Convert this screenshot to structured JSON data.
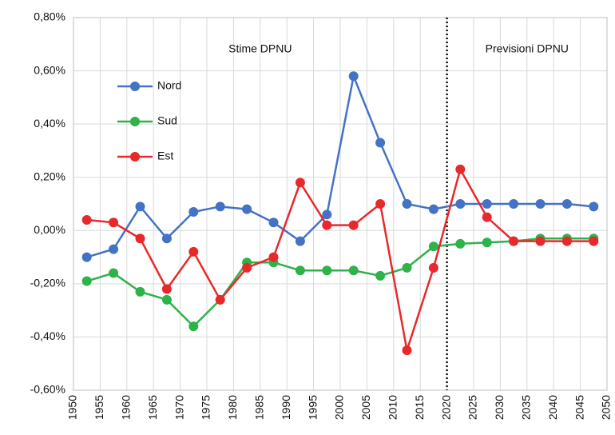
{
  "chart_data": {
    "type": "line",
    "x": [
      1952.5,
      1957.5,
      1962.5,
      1967.5,
      1972.5,
      1977.5,
      1982.5,
      1987.5,
      1992.5,
      1997.5,
      2002.5,
      2007.5,
      2012.5,
      2017.5,
      2022.5,
      2027.5,
      2032.5,
      2037.5,
      2042.5,
      2047.5
    ],
    "series": [
      {
        "name": "Nord",
        "color": "#4472c4",
        "values": [
          -0.1,
          -0.07,
          0.09,
          -0.03,
          0.07,
          0.09,
          0.08,
          0.03,
          -0.04,
          0.06,
          0.58,
          0.33,
          0.1,
          0.08,
          0.1,
          0.1,
          0.1,
          0.1,
          0.1,
          0.09
        ]
      },
      {
        "name": "Sud",
        "color": "#2eb24a",
        "values": [
          -0.19,
          -0.16,
          -0.23,
          -0.26,
          -0.36,
          -0.26,
          -0.12,
          -0.12,
          -0.15,
          -0.15,
          -0.15,
          -0.17,
          -0.14,
          -0.06,
          -0.05,
          -0.045,
          -0.04,
          -0.03,
          -0.03,
          -0.03
        ]
      },
      {
        "name": "Est",
        "color": "#e8292b",
        "values": [
          0.04,
          0.03,
          -0.03,
          -0.22,
          -0.08,
          -0.26,
          -0.14,
          -0.1,
          0.18,
          0.02,
          0.02,
          0.1,
          -0.45,
          -0.14,
          0.23,
          0.05,
          -0.04,
          -0.04,
          -0.04,
          -0.04
        ]
      }
    ],
    "xlim": [
      1950,
      2050
    ],
    "xticks": [
      1950,
      1955,
      1960,
      1965,
      1970,
      1975,
      1980,
      1985,
      1990,
      1995,
      2000,
      2005,
      2010,
      2015,
      2020,
      2025,
      2030,
      2035,
      2040,
      2045,
      2050
    ],
    "ylim": [
      -0.6,
      0.8
    ],
    "yticks": [
      {
        "value": -0.6,
        "label": "-0,60%"
      },
      {
        "value": -0.4,
        "label": "-0,40%"
      },
      {
        "value": -0.2,
        "label": "-0,20%"
      },
      {
        "value": 0,
        "label": "0,00%"
      },
      {
        "value": 0.2,
        "label": "0,20%"
      },
      {
        "value": 0.4,
        "label": "0,40%"
      },
      {
        "value": 0.6,
        "label": "0,60%"
      },
      {
        "value": 0.8,
        "label": "0,80%"
      }
    ],
    "grid": true,
    "legend": "upper left",
    "divider_x": 2020,
    "annotations": [
      "Stime DPNU",
      "Previsioni DPNU"
    ]
  }
}
